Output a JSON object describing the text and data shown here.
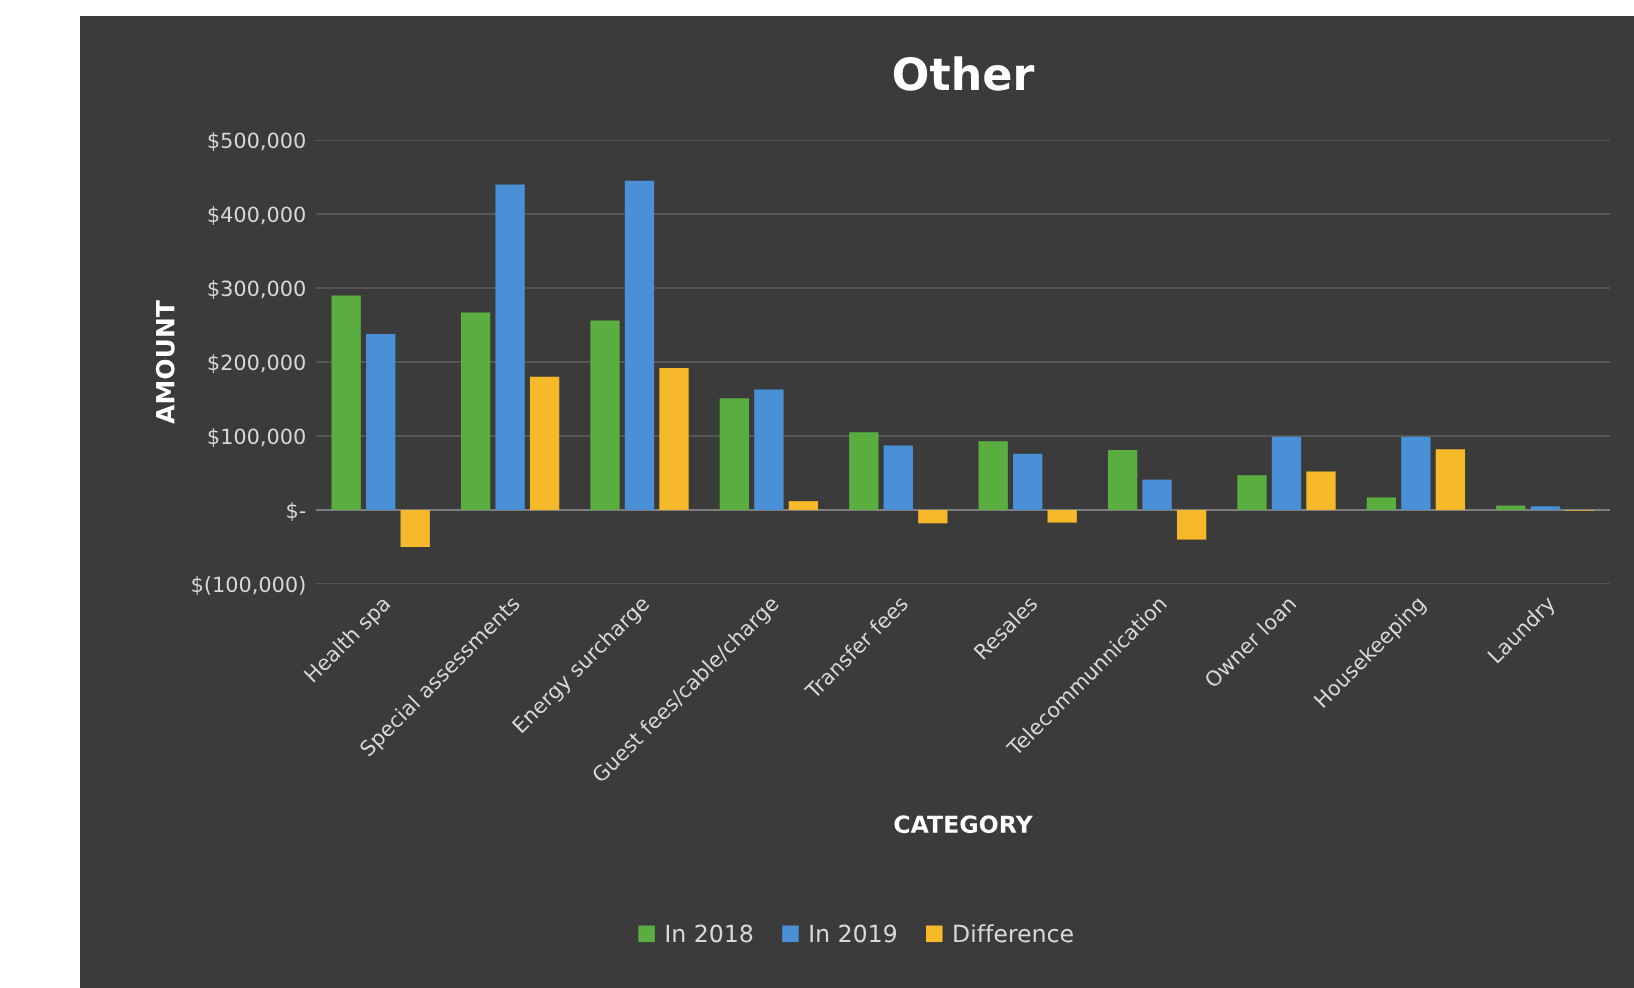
{
  "chart_data": {
    "type": "bar",
    "title": "Other",
    "xlabel": "CATEGORY",
    "ylabel": "AMOUNT",
    "categories": [
      "Health spa",
      "Special assessments",
      "Energy surcharge",
      "Guest fees/cable/charge",
      "Transfer fees",
      "Resales",
      "Telecommunnication",
      "Owner loan",
      "Housekeeping",
      "Laundry"
    ],
    "series": [
      {
        "name": "In 2018",
        "color": "#5aae3f",
        "values": [
          290000,
          267000,
          256000,
          151000,
          105000,
          93000,
          81000,
          47000,
          17000,
          6000
        ]
      },
      {
        "name": "In 2019",
        "color": "#4a90d6",
        "values": [
          238000,
          440000,
          445000,
          163000,
          87000,
          76000,
          41000,
          99000,
          99000,
          5000
        ]
      },
      {
        "name": "Difference",
        "color": "#f5b92a",
        "values": [
          -50000,
          180000,
          192000,
          12000,
          -18000,
          -17000,
          -40000,
          52000,
          82000,
          -1000
        ]
      }
    ],
    "ylim": [
      -100000,
      500000
    ],
    "yticks": [
      {
        "value": -100000,
        "label": "$(100,000)"
      },
      {
        "value": 0,
        "label": "$-"
      },
      {
        "value": 100000,
        "label": "$100,000"
      },
      {
        "value": 200000,
        "label": "$200,000"
      },
      {
        "value": 300000,
        "label": "$300,000"
      },
      {
        "value": 400000,
        "label": "$400,000"
      },
      {
        "value": 500000,
        "label": "$500,000"
      }
    ],
    "grid": "y",
    "legend": "bottom"
  }
}
